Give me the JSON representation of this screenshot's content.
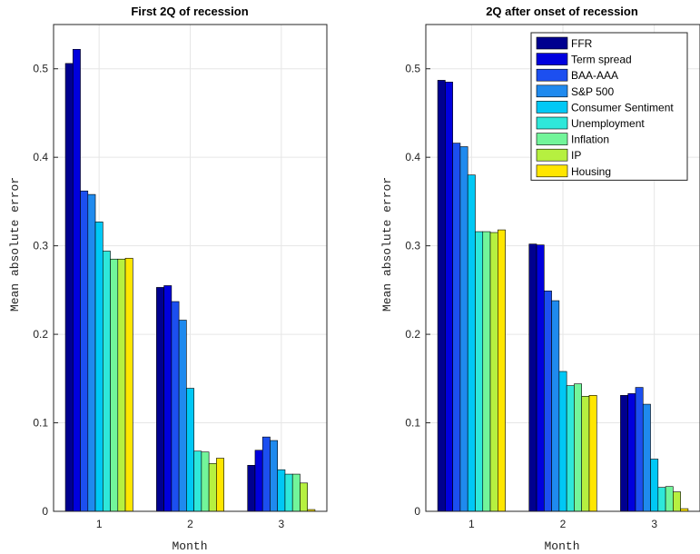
{
  "chart_data": [
    {
      "type": "bar",
      "title": "First 2Q of recession",
      "xlabel": "Month",
      "ylabel": "Mean absolute error",
      "categories": [
        "1",
        "2",
        "3"
      ],
      "ylim": [
        0,
        0.55
      ],
      "yticks": [
        0,
        0.1,
        0.2,
        0.3,
        0.4,
        0.5
      ],
      "ytick_labels": [
        "0",
        "0.1",
        "0.2",
        "0.3",
        "0.4",
        "0.5"
      ],
      "grid": true,
      "legend": false,
      "series": [
        {
          "name": "FFR",
          "values": [
            0.506,
            0.253,
            0.052
          ]
        },
        {
          "name": "Term spread",
          "values": [
            0.522,
            0.255,
            0.069
          ]
        },
        {
          "name": "BAA-AAA",
          "values": [
            0.362,
            0.237,
            0.084
          ]
        },
        {
          "name": "S&P 500",
          "values": [
            0.358,
            0.216,
            0.08
          ]
        },
        {
          "name": "Consumer Sentiment",
          "values": [
            0.327,
            0.139,
            0.047
          ]
        },
        {
          "name": "Unemployment",
          "values": [
            0.294,
            0.068,
            0.042
          ]
        },
        {
          "name": "Inflation",
          "values": [
            0.285,
            0.067,
            0.042
          ]
        },
        {
          "name": "IP",
          "values": [
            0.285,
            0.054,
            0.032
          ]
        },
        {
          "name": "Housing",
          "values": [
            0.286,
            0.06,
            0.002
          ]
        }
      ]
    },
    {
      "type": "bar",
      "title": "2Q after onset of recession",
      "xlabel": "Month",
      "ylabel": "Mean absolute error",
      "categories": [
        "1",
        "2",
        "3"
      ],
      "ylim": [
        0,
        0.55
      ],
      "yticks": [
        0,
        0.1,
        0.2,
        0.3,
        0.4,
        0.5
      ],
      "ytick_labels": [
        "0",
        "0.1",
        "0.2",
        "0.3",
        "0.4",
        "0.5"
      ],
      "grid": true,
      "legend": true,
      "legend_position": "top-right",
      "series": [
        {
          "name": "FFR",
          "values": [
            0.487,
            0.302,
            0.131
          ]
        },
        {
          "name": "Term spread",
          "values": [
            0.485,
            0.301,
            0.133
          ]
        },
        {
          "name": "BAA-AAA",
          "values": [
            0.416,
            0.249,
            0.14
          ]
        },
        {
          "name": "S&P 500",
          "values": [
            0.412,
            0.238,
            0.121
          ]
        },
        {
          "name": "Consumer Sentiment",
          "values": [
            0.38,
            0.158,
            0.059
          ]
        },
        {
          "name": "Unemployment",
          "values": [
            0.316,
            0.142,
            0.027
          ]
        },
        {
          "name": "Inflation",
          "values": [
            0.316,
            0.144,
            0.028
          ]
        },
        {
          "name": "IP",
          "values": [
            0.315,
            0.13,
            0.022
          ]
        },
        {
          "name": "Housing",
          "values": [
            0.318,
            0.131,
            0.003
          ]
        }
      ]
    }
  ],
  "colors": [
    "#00008f",
    "#0000dd",
    "#1c4ff0",
    "#1f8aee",
    "#00c8f5",
    "#2ee8da",
    "#72f59a",
    "#b6f040",
    "#ffe600"
  ]
}
